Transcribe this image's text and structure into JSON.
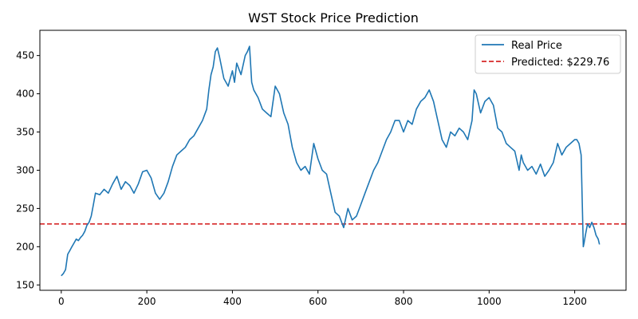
{
  "chart_data": {
    "type": "line",
    "title": "WST Stock Price Prediction",
    "xlabel": "",
    "ylabel": "",
    "xlim": [
      -50,
      1320
    ],
    "ylim": [
      143,
      483
    ],
    "xticks": [
      0,
      200,
      400,
      600,
      800,
      1000,
      1200
    ],
    "yticks": [
      150,
      200,
      250,
      300,
      350,
      400,
      450
    ],
    "grid": false,
    "legend_position": "top-right",
    "series": [
      {
        "name": "Real Price",
        "color": "#1f77b4",
        "style": "solid",
        "x": [
          0,
          5,
          10,
          15,
          20,
          25,
          30,
          35,
          40,
          45,
          50,
          55,
          60,
          65,
          70,
          75,
          80,
          90,
          100,
          110,
          120,
          130,
          140,
          150,
          160,
          170,
          180,
          190,
          200,
          210,
          220,
          230,
          240,
          250,
          260,
          270,
          280,
          290,
          300,
          310,
          320,
          330,
          340,
          345,
          350,
          355,
          360,
          365,
          370,
          380,
          390,
          395,
          400,
          405,
          410,
          420,
          430,
          435,
          440,
          445,
          450,
          460,
          470,
          480,
          490,
          500,
          510,
          520,
          530,
          540,
          550,
          560,
          570,
          580,
          590,
          600,
          610,
          620,
          630,
          640,
          650,
          660,
          670,
          680,
          690,
          700,
          710,
          720,
          730,
          740,
          750,
          760,
          770,
          780,
          790,
          800,
          810,
          820,
          830,
          840,
          850,
          860,
          870,
          880,
          890,
          900,
          910,
          920,
          930,
          940,
          950,
          960,
          965,
          970,
          980,
          990,
          1000,
          1010,
          1020,
          1030,
          1040,
          1050,
          1060,
          1070,
          1075,
          1080,
          1090,
          1100,
          1110,
          1120,
          1130,
          1140,
          1150,
          1160,
          1170,
          1180,
          1190,
          1200,
          1205,
          1210,
          1215,
          1220,
          1222,
          1225,
          1230,
          1235,
          1240,
          1245,
          1250,
          1255,
          1258
        ],
        "y": [
          162,
          165,
          170,
          190,
          195,
          200,
          205,
          210,
          208,
          212,
          215,
          220,
          228,
          232,
          240,
          255,
          270,
          268,
          275,
          270,
          282,
          292,
          275,
          285,
          280,
          270,
          282,
          298,
          300,
          290,
          270,
          262,
          270,
          285,
          305,
          320,
          325,
          330,
          340,
          345,
          355,
          365,
          380,
          405,
          425,
          435,
          455,
          460,
          448,
          420,
          410,
          420,
          430,
          415,
          440,
          425,
          450,
          455,
          462,
          415,
          405,
          395,
          380,
          375,
          370,
          410,
          400,
          375,
          360,
          330,
          310,
          300,
          305,
          295,
          335,
          315,
          300,
          295,
          270,
          245,
          240,
          225,
          250,
          235,
          240,
          255,
          270,
          285,
          300,
          310,
          325,
          340,
          350,
          365,
          365,
          350,
          365,
          360,
          380,
          390,
          395,
          405,
          390,
          365,
          340,
          330,
          350,
          345,
          355,
          350,
          340,
          365,
          405,
          400,
          375,
          390,
          395,
          385,
          355,
          350,
          335,
          330,
          325,
          300,
          320,
          310,
          300,
          305,
          295,
          308,
          292,
          300,
          310,
          335,
          320,
          330,
          335,
          340,
          340,
          335,
          320,
          200,
          205,
          215,
          230,
          225,
          232,
          225,
          215,
          210,
          203
        ]
      },
      {
        "name": "Predicted: $229.76",
        "color": "#d62728",
        "style": "dashed",
        "y_constant": 229.76
      }
    ]
  }
}
